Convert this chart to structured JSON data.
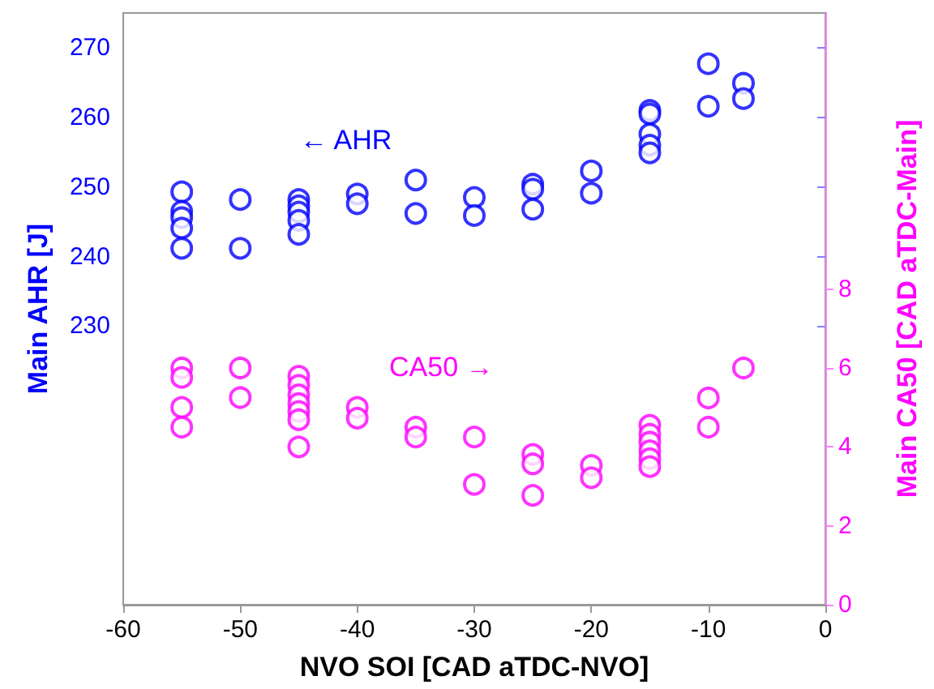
{
  "chart_data": {
    "type": "scatter",
    "xlabel": "NVO SOI [CAD aTDC-NVO]",
    "ylabel": "Main AHR [J]",
    "y2label": "Main CA50 [CAD aTDC-Main]",
    "xlim": [
      -60,
      0
    ],
    "xticks": [
      -60,
      -50,
      -40,
      -30,
      -20,
      -10,
      0
    ],
    "ylim": [
      190,
      275
    ],
    "yticks": [
      230,
      240,
      250,
      260,
      270
    ],
    "y2lim": [
      0,
      15
    ],
    "y2ticks": [
      0,
      2,
      4,
      6,
      8
    ],
    "grid": false,
    "marker": "circle",
    "annotations": [
      "← AHR",
      "CA50 →"
    ],
    "series": [
      {
        "color": "#0000ff",
        "x": [
          -55,
          -55,
          -55,
          -55,
          -55,
          -50,
          -50,
          -45,
          -45,
          -45,
          -45,
          -45,
          -40,
          -40,
          -35,
          -35,
          -30,
          -30,
          -25,
          -25,
          -25,
          -20,
          -20,
          -15,
          -15,
          -15,
          -15,
          -15,
          -10,
          -10,
          -7,
          -7
        ],
        "values": [
          249.3,
          246.5,
          245.6,
          244.1,
          241.2,
          248.2,
          241.2,
          248.2,
          247.3,
          246.4,
          245.2,
          243.2,
          249,
          247.6,
          251,
          246.2,
          248.5,
          245.9,
          250.4,
          249.7,
          246.8,
          252.3,
          249.1,
          261,
          260.5,
          257.6,
          256,
          254.9,
          267.7,
          261.6,
          264.9,
          262.7
        ]
      },
      {
        "color": "#ff00ff",
        "axis": "y2",
        "x": [
          -55,
          -55,
          -55,
          -55,
          -50,
          -50,
          -45,
          -45,
          -45,
          -45,
          -45,
          -45,
          -45,
          -40,
          -40,
          -35,
          -35,
          -30,
          -30,
          -25,
          -25,
          -25,
          -20,
          -20,
          -15,
          -15,
          -15,
          -15,
          -15,
          -15,
          -10,
          -10,
          -7
        ],
        "values": [
          6.0,
          5.76,
          5.0,
          4.5,
          6.0,
          5.25,
          5.79,
          5.56,
          5.32,
          5.1,
          4.9,
          4.69,
          4.0,
          5.0,
          4.73,
          4.5,
          4.25,
          4.25,
          3.05,
          3.81,
          3.57,
          2.77,
          3.53,
          3.22,
          4.55,
          4.32,
          4.12,
          3.9,
          3.7,
          3.5,
          5.24,
          4.5,
          6.0
        ]
      }
    ]
  }
}
